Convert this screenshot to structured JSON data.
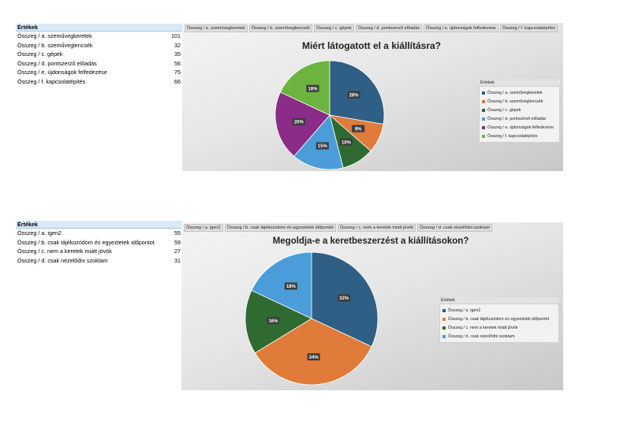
{
  "colors": {
    "blue_dark": "#2f5f85",
    "orange": "#e07b3a",
    "green": "#2f6b31",
    "light_blue": "#4a9dd8",
    "purple": "#8a2c88",
    "lime": "#6db33f"
  },
  "table1": {
    "header": "Értékek",
    "rows": [
      {
        "label": "Összeg / a. szeművegkeretek",
        "value": "101"
      },
      {
        "label": "Összeg / b. szeműveglencsék",
        "value": "32"
      },
      {
        "label": "Összeg / c. gépek",
        "value": "35"
      },
      {
        "label": "Összeg / d. pontszerző előadás",
        "value": "56"
      },
      {
        "label": "Összeg / e. újdonságok felfedezése",
        "value": "75"
      },
      {
        "label": "Összeg / f. kapcsolatépítés",
        "value": "66"
      }
    ]
  },
  "table2": {
    "header": "Értékek",
    "rows": [
      {
        "label": "Összeg / a. igen2",
        "value": "55"
      },
      {
        "label": "Összeg / b. csak tájékozódom és egyeztetek időpontot",
        "value": "59"
      },
      {
        "label": "Összeg / c. nem a keretek miatt jövök",
        "value": "27"
      },
      {
        "label": "Összeg / d. csak nézelődni szoktam",
        "value": "31"
      }
    ]
  },
  "chart1": {
    "buttons": [
      "Összeg / a. szemüvegkeretek",
      "Összeg / b. szeműveglencsék",
      "Összeg / c. gépek",
      "Összeg / d. pontszerző előadás",
      "Összeg / e. újdonságok felfedezése",
      "Összeg / f. kapcsolatépítés"
    ],
    "title": "Miért látogatott el a kiállításra?",
    "legend_header": "Értékek",
    "legend_items": [
      "Összeg / a. szeművegkeretek",
      "Összeg / b. szeműveglencsék",
      "Összeg / c. gépek",
      "Összeg / d. pontszerző előadás",
      "Összeg / e. újdonságok felfedezése",
      "Összeg / f. kapcsolatépítés"
    ],
    "labels": [
      "28%",
      "9%",
      "10%",
      "15%",
      "20%",
      "18%"
    ]
  },
  "chart2": {
    "buttons": [
      "Összeg / a. igen2",
      "Összeg / b. csak tájékozódom és egyeztetek időpontot",
      "Összeg / c. nem a keretek miatt jövök",
      "Összeg / d. csak nézelődni szoktam"
    ],
    "title": "Megoldja-e a keretbeszerzést a kiállításokon?",
    "legend_header": "Értékek",
    "legend_items": [
      "Összeg / a. igen2",
      "Összeg / b. csak tájékozódom és egyeztetek időpontot",
      "Összeg / c. nem a keretek miatt jövök",
      "Összeg / d. csak nézelődni szoktam"
    ],
    "labels": [
      "32%",
      "34%",
      "16%",
      "18%"
    ]
  },
  "chart_data": [
    {
      "type": "pie",
      "title": "Miért látogatott el a kiállításra?",
      "categories": [
        "Összeg / a. szeművegkeretek",
        "Összeg / b. szeműveglencsék",
        "Összeg / c. gépek",
        "Összeg / d. pontszerző előadás",
        "Összeg / e. újdonságok felfedezése",
        "Összeg / f. kapcsolatépítés"
      ],
      "values": [
        101,
        32,
        35,
        56,
        75,
        66
      ],
      "colors": [
        "#2f5f85",
        "#e07b3a",
        "#2f6b31",
        "#4a9dd8",
        "#8a2c88",
        "#6db33f"
      ],
      "legend": "right"
    },
    {
      "type": "pie",
      "title": "Megoldja-e a keretbeszerzést a kiállításokon?",
      "categories": [
        "Összeg / a. igen2",
        "Összeg / b. csak tájékozódom és egyeztetek időpontot",
        "Összeg / c. nem a keretek miatt jövök",
        "Összeg / d. csak nézelődni szoktam"
      ],
      "values": [
        55,
        59,
        27,
        31
      ],
      "colors": [
        "#2f5f85",
        "#e07b3a",
        "#2f6b31",
        "#4a9dd8"
      ],
      "legend": "right"
    }
  ]
}
